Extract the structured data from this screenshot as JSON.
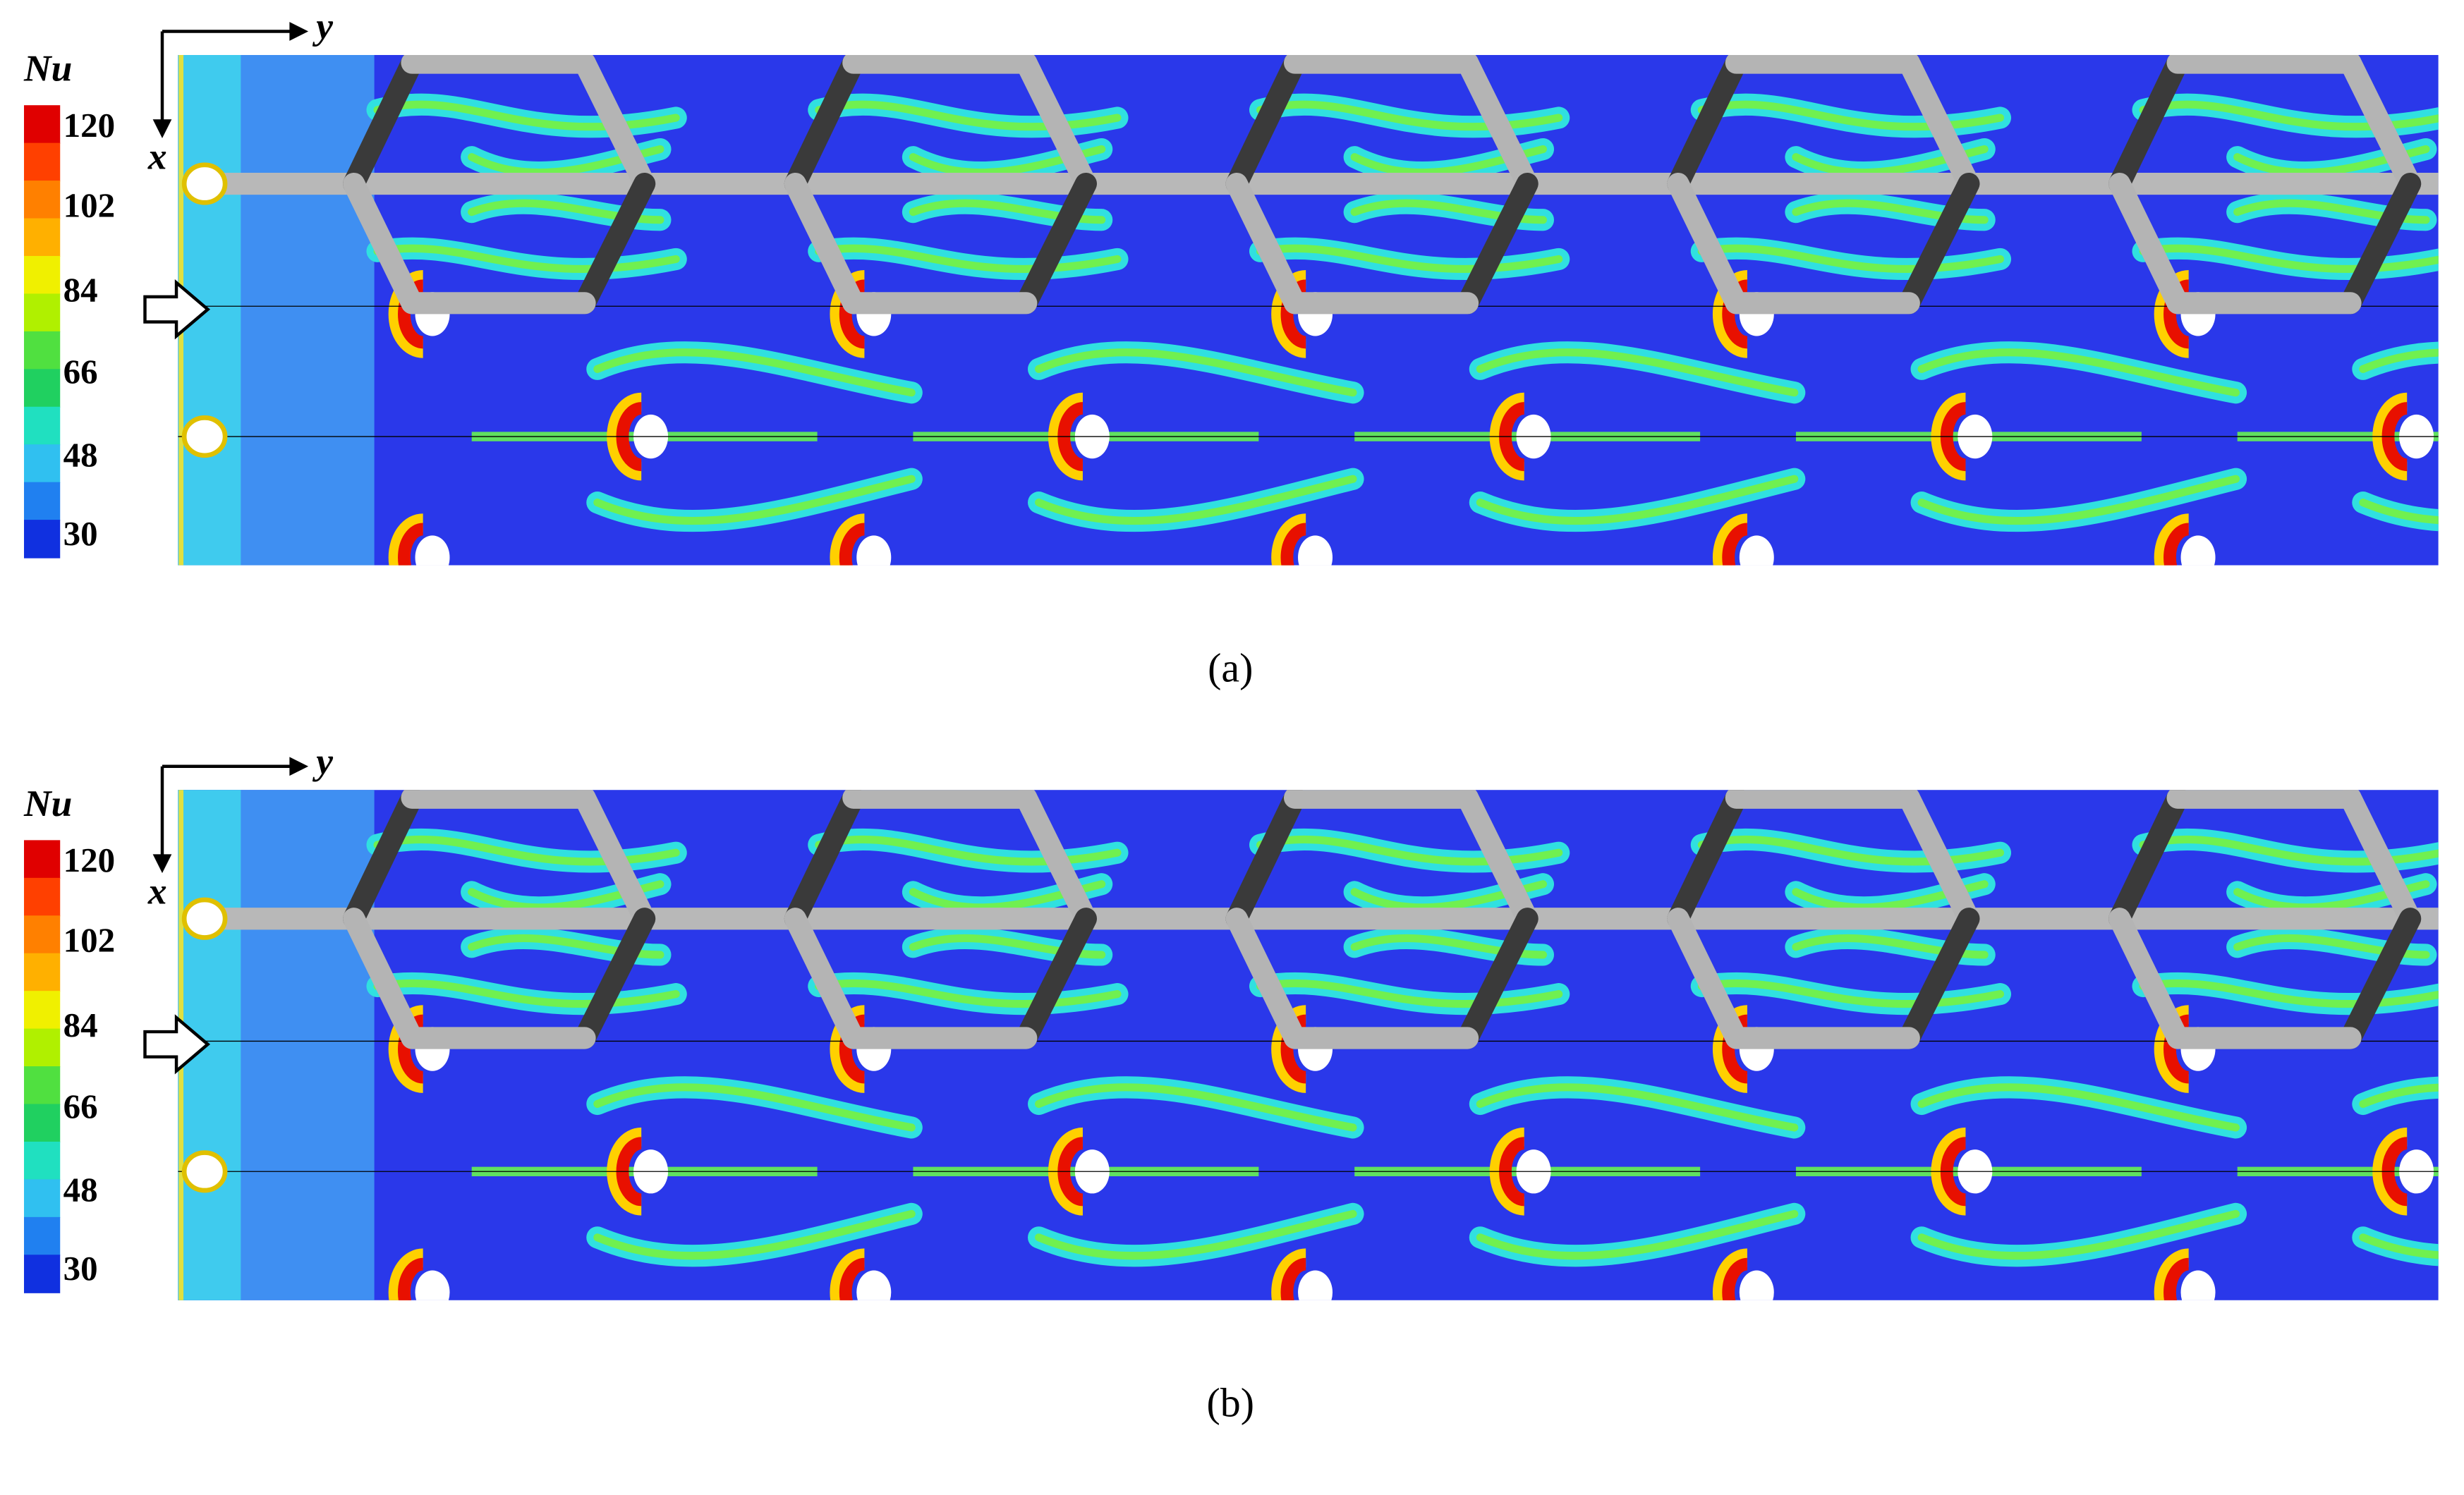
{
  "panels": [
    {
      "legend_title": "Nu",
      "ticks": [
        120,
        102,
        84,
        66,
        48,
        30
      ],
      "x_axis": "x",
      "y_axis": "y",
      "caption": "(a)"
    },
    {
      "legend_title": "Nu",
      "ticks": [
        120,
        102,
        84,
        66,
        48,
        30
      ],
      "x_axis": "x",
      "y_axis": "y",
      "caption": "(b)"
    }
  ]
}
